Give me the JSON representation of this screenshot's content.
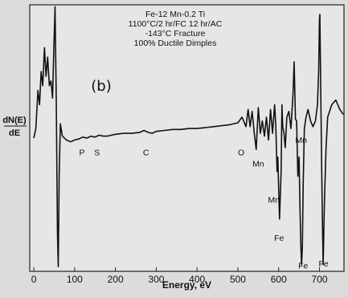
{
  "chart_data": {
    "type": "line",
    "caption_lines": [
      "Fe-12 Mn-0.2 Ti",
      "1100°C/2 hr/FC 12 hr/AC",
      "-143°C Fracture",
      "100% Ductile Dimples"
    ],
    "panel_label": "(b)",
    "ylabel_top": "dN(E)",
    "ylabel_bottom": "dE",
    "xlabel": "Energy, eV",
    "xlim": [
      -10,
      760
    ],
    "ylim": [
      -1.4,
      1.4
    ],
    "xticks": [
      0,
      100,
      200,
      300,
      400,
      500,
      600,
      700
    ],
    "series": [
      {
        "x": [
          0,
          5,
          10,
          14,
          18,
          22,
          26,
          30,
          34,
          38,
          42,
          46,
          49,
          52,
          55,
          58,
          60,
          62,
          65,
          70,
          80,
          90,
          100,
          110,
          120,
          130,
          140,
          150,
          160,
          170,
          180,
          190,
          200,
          220,
          240,
          260,
          270,
          280,
          290,
          300,
          320,
          340,
          360,
          380,
          400,
          420,
          440,
          460,
          480,
          500,
          510,
          520,
          525,
          530,
          535,
          540,
          545,
          550,
          555,
          560,
          565,
          570,
          575,
          580,
          585,
          590,
          593,
          596,
          598,
          600,
          602,
          604,
          606,
          608,
          610,
          613,
          616,
          620,
          625,
          630,
          635,
          638,
          641,
          644,
          647,
          650,
          652,
          654,
          656,
          658,
          660,
          663,
          667,
          672,
          678,
          684,
          690,
          695,
          698,
          700,
          701,
          703,
          705,
          707,
          709,
          712,
          716,
          720,
          730,
          740,
          750,
          758
        ],
        "values": [
          0.0,
          0.1,
          0.5,
          0.35,
          0.7,
          0.55,
          0.95,
          0.65,
          0.85,
          0.55,
          0.6,
          0.42,
          0.95,
          1.38,
          0.4,
          -1.0,
          -1.35,
          -0.4,
          0.15,
          0.02,
          -0.02,
          -0.04,
          -0.02,
          -0.01,
          0.01,
          0.0,
          0.02,
          0.01,
          0.03,
          0.02,
          0.02,
          0.03,
          0.04,
          0.05,
          0.05,
          0.06,
          0.08,
          0.06,
          0.05,
          0.07,
          0.08,
          0.09,
          0.09,
          0.1,
          0.1,
          0.11,
          0.12,
          0.13,
          0.14,
          0.16,
          0.22,
          0.12,
          0.3,
          0.12,
          0.28,
          0.06,
          -0.12,
          0.32,
          0.05,
          0.18,
          0.02,
          0.22,
          -0.02,
          0.3,
          0.05,
          0.35,
          0.12,
          -0.35,
          -0.2,
          -0.55,
          -0.85,
          -0.6,
          -0.35,
          0.35,
          0.12,
          0.05,
          -0.1,
          0.22,
          0.28,
          0.1,
          0.45,
          0.8,
          0.2,
          0.18,
          -0.4,
          -0.2,
          -0.7,
          -1.1,
          -1.33,
          -1.15,
          -0.5,
          0.1,
          0.22,
          0.3,
          0.18,
          0.12,
          0.18,
          0.35,
          0.7,
          1.25,
          1.3,
          0.5,
          -0.2,
          -0.85,
          -1.33,
          -0.7,
          -0.1,
          0.22,
          0.35,
          0.4,
          0.3,
          0.25
        ]
      }
    ],
    "peak_labels": [
      {
        "text": "P",
        "x": 118,
        "y": -0.18
      },
      {
        "text": "S",
        "x": 155,
        "y": -0.18
      },
      {
        "text": "C",
        "x": 275,
        "y": -0.18
      },
      {
        "text": "O",
        "x": 508,
        "y": -0.18
      },
      {
        "text": "Mn",
        "x": 550,
        "y": -0.3
      },
      {
        "text": "Mn",
        "x": 588,
        "y": -0.68
      },
      {
        "text": "Mn",
        "x": 655,
        "y": -0.05
      },
      {
        "text": "Fe",
        "x": 601,
        "y": -1.08
      },
      {
        "text": "Fe",
        "x": 660,
        "y": -1.37
      },
      {
        "text": "Fe",
        "x": 710,
        "y": -1.35
      }
    ]
  }
}
